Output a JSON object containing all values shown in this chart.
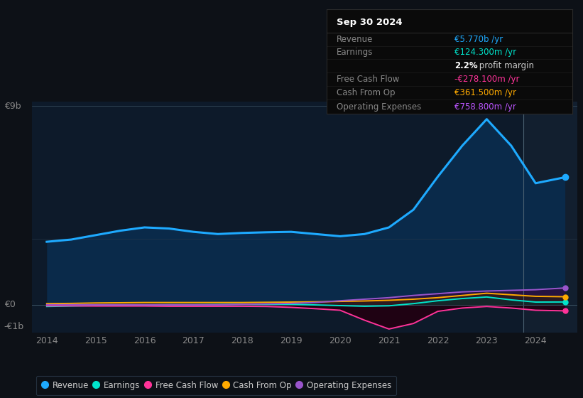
{
  "bg_color": "#0d1117",
  "plot_bg_color": "#0d1a2a",
  "years": [
    2014,
    2014.5,
    2015,
    2015.5,
    2016,
    2016.5,
    2017,
    2017.5,
    2018,
    2018.5,
    2019,
    2019.5,
    2020,
    2020.5,
    2021,
    2021.5,
    2022,
    2022.5,
    2023,
    2023.5,
    2024,
    2024.6
  ],
  "revenue": [
    2.85,
    2.95,
    3.15,
    3.35,
    3.5,
    3.45,
    3.3,
    3.2,
    3.25,
    3.28,
    3.3,
    3.2,
    3.1,
    3.2,
    3.5,
    4.3,
    5.8,
    7.2,
    8.4,
    7.2,
    5.5,
    5.77
  ],
  "earnings": [
    -0.08,
    -0.06,
    -0.04,
    -0.02,
    -0.01,
    0.0,
    0.0,
    0.01,
    0.02,
    0.02,
    0.02,
    -0.01,
    -0.04,
    -0.07,
    -0.05,
    0.05,
    0.18,
    0.28,
    0.35,
    0.22,
    0.12,
    0.1243
  ],
  "free_cash_flow": [
    -0.05,
    -0.05,
    -0.06,
    -0.06,
    -0.06,
    -0.07,
    -0.07,
    -0.07,
    -0.07,
    -0.08,
    -0.12,
    -0.18,
    -0.25,
    -0.7,
    -1.1,
    -0.85,
    -0.3,
    -0.15,
    -0.08,
    -0.15,
    -0.25,
    -0.2781
  ],
  "cash_from_op": [
    0.05,
    0.06,
    0.08,
    0.09,
    0.1,
    0.1,
    0.1,
    0.1,
    0.1,
    0.11,
    0.12,
    0.13,
    0.15,
    0.17,
    0.2,
    0.25,
    0.32,
    0.42,
    0.52,
    0.45,
    0.38,
    0.3615
  ],
  "operating_expenses": [
    0.0,
    0.0,
    0.0,
    0.0,
    0.0,
    0.0,
    0.0,
    0.0,
    0.02,
    0.04,
    0.06,
    0.1,
    0.18,
    0.25,
    0.32,
    0.42,
    0.5,
    0.58,
    0.62,
    0.65,
    0.68,
    0.7588
  ],
  "revenue_color": "#1eaaff",
  "earnings_color": "#00e5cc",
  "free_cash_flow_color": "#ff3399",
  "cash_from_op_color": "#ffaa00",
  "operating_expenses_color": "#9955cc",
  "revenue_fill": "#0a2a4a",
  "earnings_fill": "#003333",
  "fcf_fill": "#220011",
  "opex_fill": "#2a1040",
  "cfo_fill": "#332200",
  "ylim": [
    -1.25,
    9.2
  ],
  "xlim_min": 2013.7,
  "xlim_max": 2024.85,
  "vline_x": 2023.75,
  "ytick_9b_label": "€9b",
  "ytick_0_label": "€0",
  "ytick_m1b_label": "-€1b",
  "xtick_positions": [
    2014,
    2015,
    2016,
    2017,
    2018,
    2019,
    2020,
    2021,
    2022,
    2023,
    2024
  ],
  "xtick_labels": [
    "2014",
    "2015",
    "2016",
    "2017",
    "2018",
    "2019",
    "2020",
    "2021",
    "2022",
    "2023",
    "2024"
  ],
  "info_box": {
    "title": "Sep 30 2024",
    "rows": [
      {
        "label": "Revenue",
        "value": "€5.770b /yr",
        "value_color": "#1eaaff",
        "bold_part": null
      },
      {
        "label": "Earnings",
        "value": "€124.300m /yr",
        "value_color": "#00e5cc",
        "bold_part": null
      },
      {
        "label": "",
        "value": " profit margin",
        "value_color": "#cccccc",
        "bold_part": "2.2%"
      },
      {
        "label": "Free Cash Flow",
        "value": "-€278.100m /yr",
        "value_color": "#ff3399",
        "bold_part": null
      },
      {
        "label": "Cash From Op",
        "value": "€361.500m /yr",
        "value_color": "#ffaa00",
        "bold_part": null
      },
      {
        "label": "Operating Expenses",
        "value": "€758.800m /yr",
        "value_color": "#bb55ff",
        "bold_part": null
      }
    ]
  },
  "legend_items": [
    {
      "label": "Revenue",
      "color": "#1eaaff"
    },
    {
      "label": "Earnings",
      "color": "#00e5cc"
    },
    {
      "label": "Free Cash Flow",
      "color": "#ff3399"
    },
    {
      "label": "Cash From Op",
      "color": "#ffaa00"
    },
    {
      "label": "Operating Expenses",
      "color": "#9955cc"
    }
  ]
}
